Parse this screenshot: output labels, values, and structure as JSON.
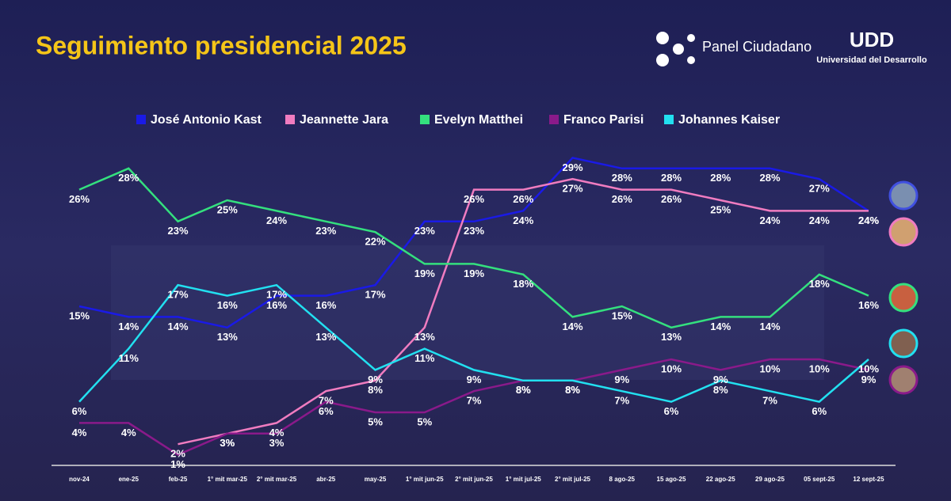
{
  "header": {
    "title": "Seguimiento presidencial 2025",
    "logo1": "Panel Ciudadano",
    "logo2": "UDD",
    "logo2_sub": "Universidad del Desarrollo"
  },
  "chart_data": {
    "type": "line",
    "categories": [
      "nov-24",
      "ene-25",
      "feb-25",
      "1° mit mar-25",
      "2° mit mar-25",
      "abr-25",
      "may-25",
      "1° mit jun-25",
      "2° mit jun-25",
      "1° mit jul-25",
      "2° mit jul-25",
      "8 ago-25",
      "15 ago-25",
      "22 ago-25",
      "29 ago-25",
      "05 sept-25",
      "12 sept-25"
    ],
    "ylim": [
      0,
      30
    ],
    "legend": "top",
    "series": [
      {
        "name": "José Antonio Kast",
        "color": "#1a1ae6",
        "values": [
          15,
          14,
          14,
          13,
          16,
          16,
          17,
          23,
          23,
          24,
          29,
          28,
          28,
          28,
          28,
          27,
          24
        ],
        "value_labels": [
          "15%",
          "14%",
          "14%",
          "13%",
          "16%",
          "16%",
          "17%",
          "23%",
          "23%",
          "24%",
          "29%",
          "28%",
          "28%",
          "28%",
          "28%",
          "27%",
          "24%"
        ]
      },
      {
        "name": "Jeannette Jara",
        "color": "#f07cc0",
        "values": [
          null,
          null,
          2,
          3,
          4,
          7,
          8,
          13,
          26,
          26,
          27,
          26,
          26,
          25,
          24,
          24,
          24
        ],
        "value_labels": [
          null,
          null,
          "2%",
          "3%",
          "4%",
          "7%",
          "8%",
          "13%",
          "26%",
          "26%",
          "27%",
          "26%",
          "26%",
          "25%",
          "24%",
          "24%",
          "24%"
        ]
      },
      {
        "name": "Evelyn Matthei",
        "color": "#34e07e",
        "values": [
          26,
          28,
          23,
          25,
          24,
          23,
          22,
          19,
          19,
          18,
          14,
          15,
          13,
          14,
          14,
          18,
          16
        ],
        "value_labels": [
          "26%",
          "28%",
          "23%",
          "25%",
          "24%",
          "23%",
          "22%",
          "19%",
          "19%",
          "18%",
          "14%",
          "15%",
          "13%",
          "14%",
          "14%",
          "18%",
          "16%"
        ]
      },
      {
        "name": "Franco Parisi",
        "color": "#8a1a8a",
        "values": [
          4,
          4,
          1,
          3,
          3,
          6,
          5,
          5,
          7,
          8,
          8,
          9,
          10,
          9,
          10,
          10,
          9
        ],
        "value_labels": [
          "4%",
          "4%",
          "1%",
          "3%",
          "3%",
          "6%",
          "5%",
          "5%",
          "7%",
          "8%",
          "8%",
          "9%",
          "10%",
          "9%",
          "10%",
          "10%",
          "9%"
        ]
      },
      {
        "name": "Johannes Kaiser",
        "color": "#22e0f0",
        "values": [
          6,
          11,
          17,
          16,
          17,
          13,
          9,
          11,
          9,
          8,
          8,
          7,
          6,
          8,
          7,
          6,
          10
        ],
        "value_labels": [
          "6%",
          "11%",
          "17%",
          "16%",
          "17%",
          "13%",
          "9%",
          "11%",
          "9%",
          "8%",
          "8%",
          "7%",
          "6%",
          "8%",
          "7%",
          "6%",
          "10%"
        ]
      }
    ]
  }
}
